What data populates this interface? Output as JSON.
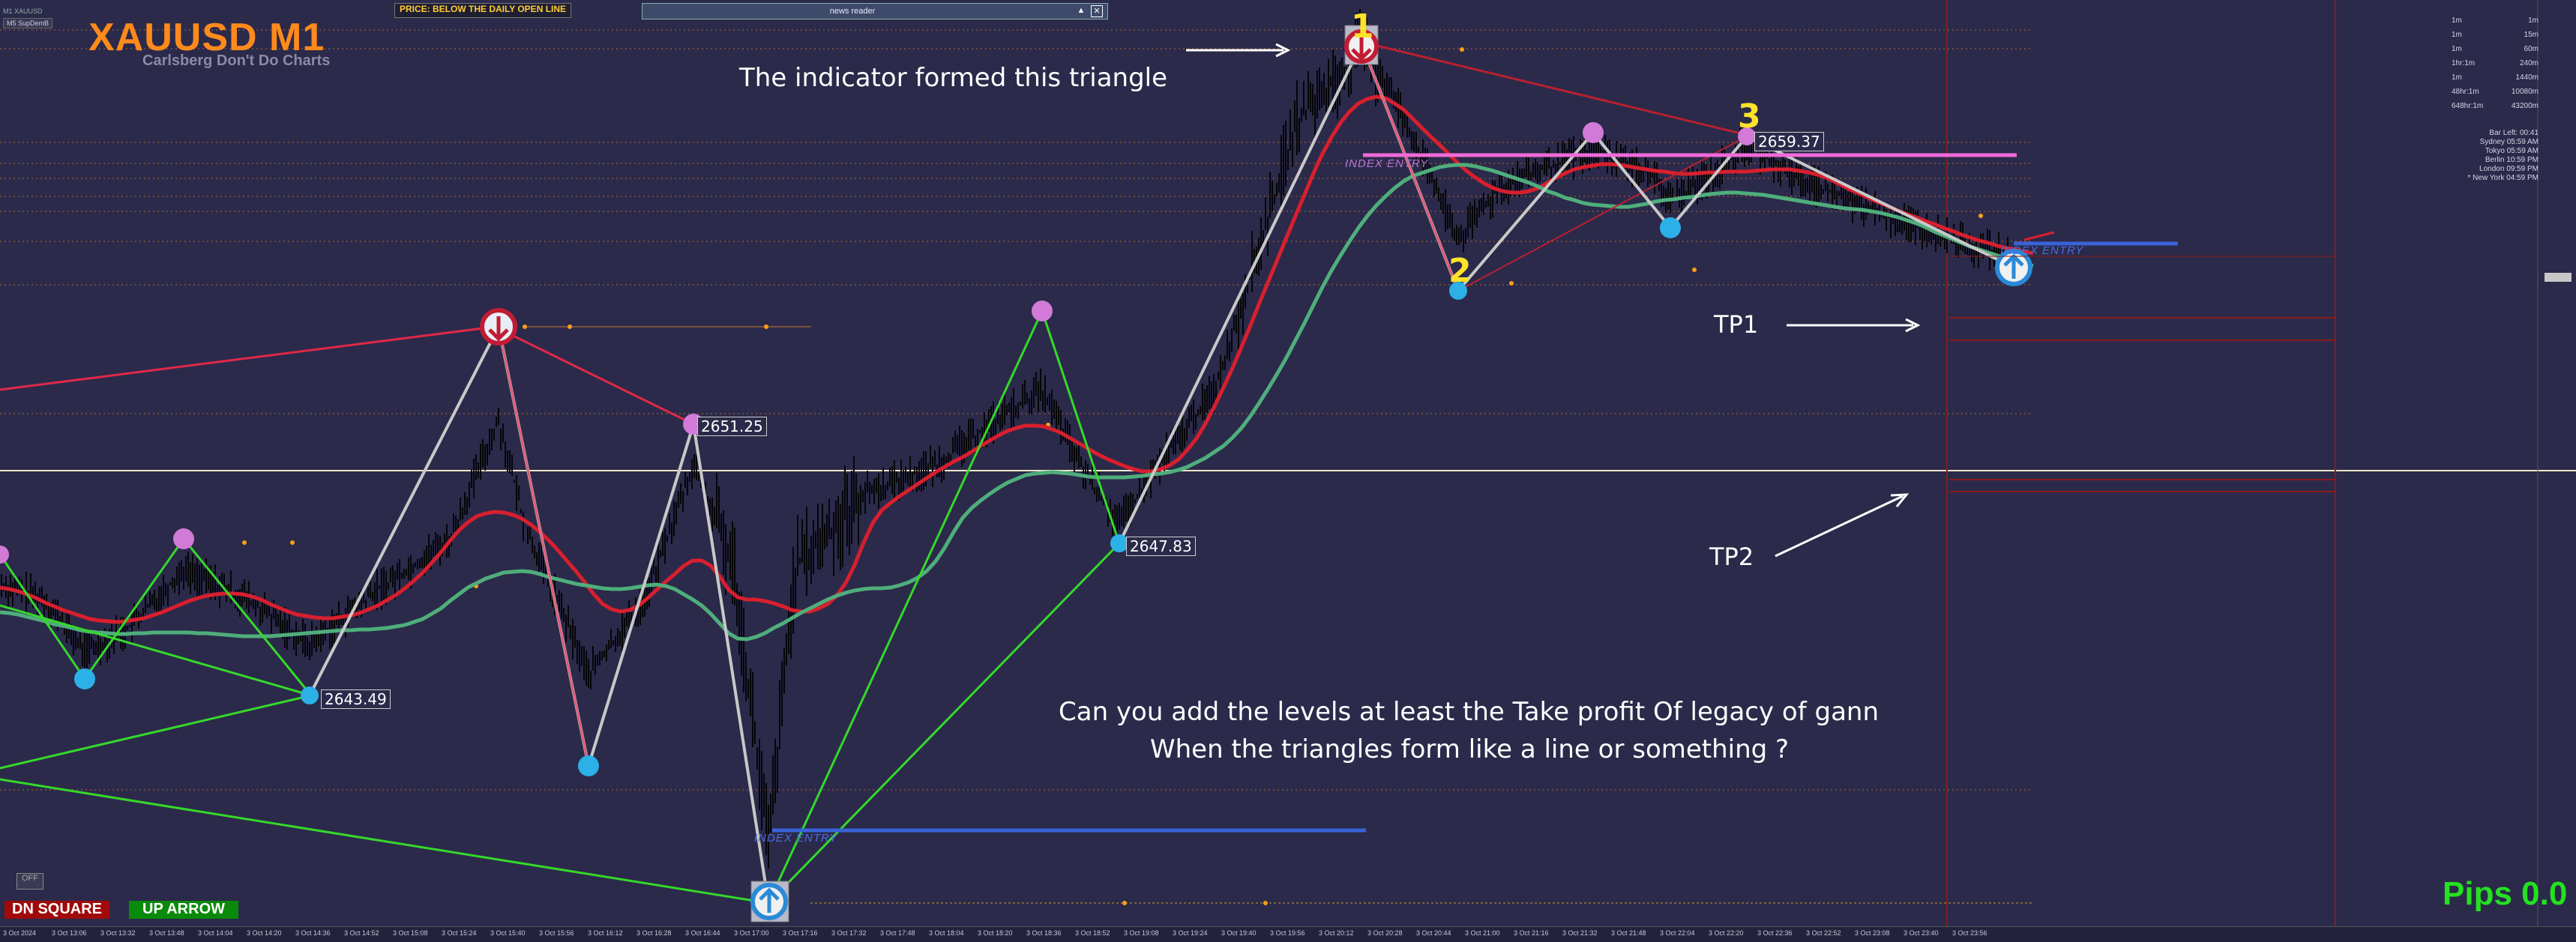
{
  "header": {
    "symbol_title": "XAUUSD M1",
    "subtitle": "Carlsberg Don't Do Charts",
    "top_tag": "M1 XAUUSD",
    "top_tag2": "M5 SupDemB",
    "price_banner": "PRICE: BELOW THE DAILY OPEN LINE",
    "news_reader": "news reader"
  },
  "annotations": {
    "triangle_note": "The indicator formed this triangle",
    "tp1": "TP1",
    "tp2": "TP2",
    "question_line1": "Can you add the levels at least the Take profit Of legacy of gann",
    "question_line2": "When the triangles form like a line or something  ?"
  },
  "triangle_points": [
    "1",
    "2",
    "3"
  ],
  "price_labels": [
    "2651.25",
    "2643.49",
    "2647.83",
    "2659.37"
  ],
  "index_entry_label": "INDEX ENTRY",
  "timeframes": [
    {
      "a": "1m",
      "b": "1m"
    },
    {
      "a": "1m",
      "b": "15m"
    },
    {
      "a": "1m",
      "b": "60m"
    },
    {
      "a": "1hr:1m",
      "b": "240m"
    },
    {
      "a": "1m",
      "b": "1440m"
    },
    {
      "a": "48hr:1m",
      "b": "10080m"
    },
    {
      "a": "648hr:1m",
      "b": "43200m"
    }
  ],
  "session_info": [
    "Bar Left: 00:41",
    "Sydney 05:59 AM",
    "Tokyo 05:59 AM",
    "Berlin 10:59 PM",
    "London 09:59 PM",
    "* New York 04:59 PM"
  ],
  "buttons": {
    "dn_square": "DN SQUARE",
    "up_arrow": "UP ARROW",
    "off": "OFF"
  },
  "pips": "Pips 0.0",
  "bottom_right_badge": "Pips 0.0",
  "colors": {
    "background": "#2b2a4a",
    "title": "#ff8a1c",
    "ma_red": "#d81f2e",
    "ma_green": "#4fae7c",
    "zigzag_green": "#35d92b",
    "zigzag_white": "#c8c8c8",
    "pink_line": "#f06ad8",
    "blue_entry": "#3a62d8",
    "pips_green": "#23e21f",
    "number_yellow": "#ffe22a"
  },
  "x_ticks": [
    "3 Oct 2024",
    "3 Oct 13:06",
    "3 Oct 13:32",
    "3 Oct 13:48",
    "3 Oct 14:04",
    "3 Oct 14:20",
    "3 Oct 14:36",
    "3 Oct 14:52",
    "3 Oct 15:08",
    "3 Oct 15:24",
    "3 Oct 15:40",
    "3 Oct 15:56",
    "3 Oct 16:12",
    "3 Oct 16:28",
    "3 Oct 16:44",
    "3 Oct 17:00",
    "3 Oct 17:16",
    "3 Oct 17:32",
    "3 Oct 17:48",
    "3 Oct 18:04",
    "3 Oct 18:20",
    "3 Oct 18:36",
    "3 Oct 18:52",
    "3 Oct 19:08",
    "3 Oct 19:24",
    "3 Oct 19:40",
    "3 Oct 19:56",
    "3 Oct 20:12",
    "3 Oct 20:28",
    "3 Oct 20:44",
    "3 Oct 21:00",
    "3 Oct 21:16",
    "3 Oct 21:32",
    "3 Oct 21:48",
    "3 Oct 22:04",
    "3 Oct 22:20",
    "3 Oct 22:36",
    "3 Oct 22:52",
    "3 Oct 23:08",
    "3 Oct 23:40",
    "3 Oct 23:56"
  ]
}
